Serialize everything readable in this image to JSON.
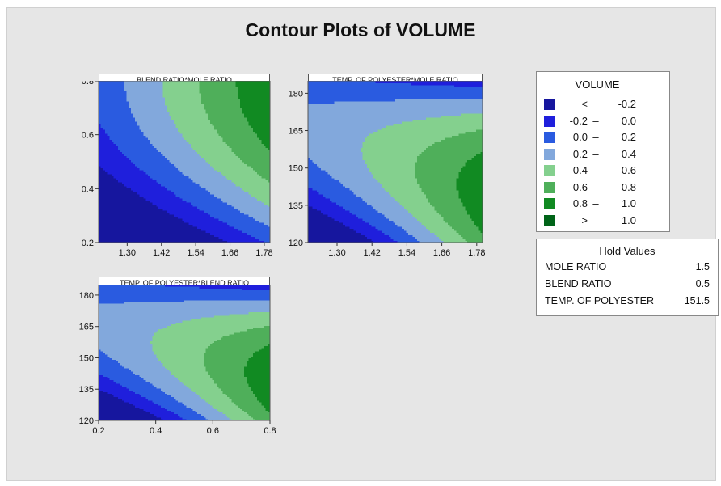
{
  "title": "Contour Plots of VOLUME",
  "colors": {
    "bands": [
      "#16169e",
      "#1f1fdc",
      "#2a5be0",
      "#82a8dc",
      "#84d08e",
      "#4faf5a",
      "#118a22",
      "#006418"
    ]
  },
  "chart_data": [
    {
      "type": "contour",
      "title": "BLEND RATIO*MOLE RATIO",
      "x_variable": "MOLE RATIO",
      "y_variable": "BLEND RATIO",
      "xlim": [
        1.2,
        1.8
      ],
      "ylim": [
        0.2,
        0.8
      ],
      "x_ticks": [
        "1.30",
        "1.42",
        "1.54",
        "1.66",
        "1.78"
      ],
      "y_ticks": [
        "0.2",
        "0.4",
        "0.6",
        "0.8"
      ],
      "z_model": {
        "c": 0.28,
        "x_lin": 0.46,
        "y_lin": 0.48,
        "y_quad": -0.24
      }
    },
    {
      "type": "contour",
      "title": "TEMP. OF POLYESTER*MOLE RATIO",
      "x_variable": "MOLE RATIO",
      "y_variable": "TEMP. OF POLYESTER",
      "xlim": [
        1.2,
        1.8
      ],
      "ylim": [
        120,
        185
      ],
      "x_ticks": [
        "1.30",
        "1.42",
        "1.54",
        "1.66",
        "1.78"
      ],
      "y_ticks": [
        "120",
        "135",
        "150",
        "165",
        "180"
      ],
      "z_model": {
        "c": 0.52,
        "x_lin": 0.34,
        "y_quad": -0.55,
        "xy": -0.42
      }
    },
    {
      "type": "contour",
      "title": "TEMP. OF POLYESTER*BLEND RATIO",
      "x_variable": "BLEND RATIO",
      "y_variable": "TEMP. OF POLYESTER",
      "xlim": [
        0.2,
        0.8
      ],
      "ylim": [
        120,
        185
      ],
      "x_ticks": [
        "0.2",
        "0.4",
        "0.6",
        "0.8"
      ],
      "y_ticks": [
        "120",
        "135",
        "150",
        "165",
        "180"
      ],
      "z_model": {
        "c": 0.52,
        "x_lin": 0.34,
        "y_quad": -0.55,
        "xy": -0.42
      }
    }
  ],
  "legend": {
    "title": "VOLUME",
    "rows": [
      {
        "a": "<",
        "b": "",
        "c": "-0.2"
      },
      {
        "a": "-0.2",
        "b": "–",
        "c": "0.0"
      },
      {
        "a": "0.0",
        "b": "–",
        "c": "0.2"
      },
      {
        "a": "0.2",
        "b": "–",
        "c": "0.4"
      },
      {
        "a": "0.4",
        "b": "–",
        "c": "0.6"
      },
      {
        "a": "0.6",
        "b": "–",
        "c": "0.8"
      },
      {
        "a": "0.8",
        "b": "–",
        "c": "1.0"
      },
      {
        "a": ">",
        "b": "",
        "c": "1.0"
      }
    ]
  },
  "hold_values": {
    "title": "Hold Values",
    "rows": [
      {
        "name": "MOLE RATIO",
        "value": "1.5"
      },
      {
        "name": "BLEND RATIO",
        "value": "0.5"
      },
      {
        "name": "TEMP. OF POLYESTER",
        "value": "151.5"
      }
    ]
  }
}
